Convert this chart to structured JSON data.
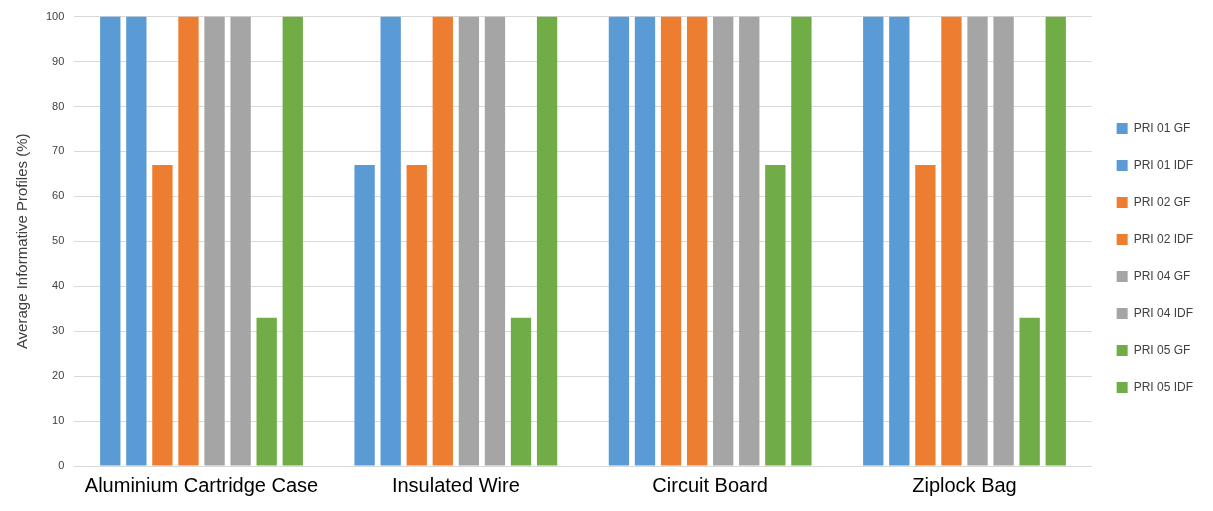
{
  "chart_data": {
    "type": "bar",
    "ylabel": "Average Informative Profiles (%)",
    "categories": [
      "Aluminium Cartridge Case",
      "Insulated Wire",
      "Circuit Board",
      "Ziplock Bag"
    ],
    "series": [
      {
        "name": "PRI 01 GF",
        "color": "#5b9bd5",
        "values": [
          100,
          67,
          100,
          100
        ]
      },
      {
        "name": "PRI 01 IDF",
        "color": "#5b9bd5",
        "values": [
          100,
          100,
          100,
          100
        ]
      },
      {
        "name": "PRI 02 GF",
        "color": "#ed7d31",
        "values": [
          67,
          67,
          100,
          67
        ]
      },
      {
        "name": "PRI 02 IDF",
        "color": "#ed7d31",
        "values": [
          100,
          100,
          100,
          100
        ]
      },
      {
        "name": "PRI 04 GF",
        "color": "#a5a5a5",
        "values": [
          100,
          100,
          100,
          100
        ]
      },
      {
        "name": "PRI 04 IDF",
        "color": "#a5a5a5",
        "values": [
          100,
          100,
          100,
          100
        ]
      },
      {
        "name": "PRI 05 GF",
        "color": "#70ad47",
        "values": [
          33,
          33,
          67,
          33
        ]
      },
      {
        "name": "PRI 05 IDF",
        "color": "#70ad47",
        "values": [
          100,
          100,
          100,
          100
        ]
      }
    ],
    "ylim": [
      0,
      100
    ],
    "yticks": [
      0,
      10,
      20,
      30,
      40,
      50,
      60,
      70,
      80,
      90,
      100
    ],
    "grid": "y",
    "legend": "right"
  }
}
